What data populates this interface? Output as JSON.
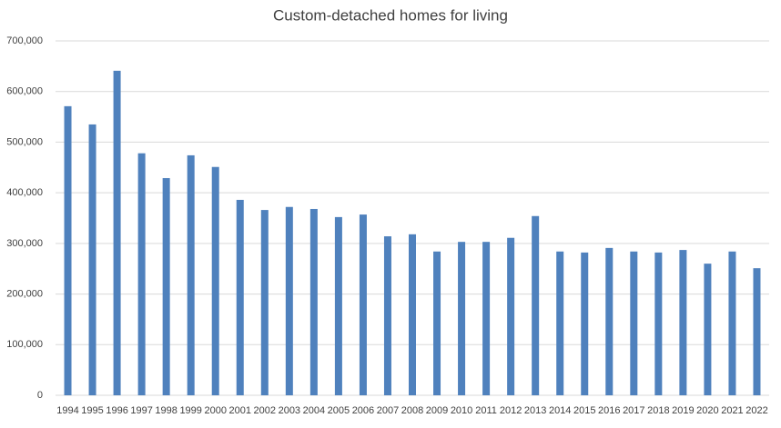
{
  "chart_data": {
    "type": "bar",
    "title": "Custom-detached homes for living",
    "categories": [
      "1994",
      "1995",
      "1996",
      "1997",
      "1998",
      "1999",
      "2000",
      "2001",
      "2002",
      "2003",
      "2004",
      "2005",
      "2006",
      "2007",
      "2008",
      "2009",
      "2010",
      "2011",
      "2012",
      "2013",
      "2014",
      "2015",
      "2016",
      "2017",
      "2018",
      "2019",
      "2020",
      "2021",
      "2022"
    ],
    "values": [
      571000,
      535000,
      641000,
      478000,
      429000,
      474000,
      451000,
      386000,
      366000,
      372000,
      368000,
      352000,
      357000,
      314000,
      318000,
      284000,
      303000,
      303000,
      311000,
      354000,
      284000,
      282000,
      291000,
      284000,
      282000,
      287000,
      260000,
      284000,
      251000
    ],
    "color": "#4f81bd",
    "ylim": [
      0,
      700000
    ],
    "yticks": [
      0,
      {
        "value": 100000,
        "label": "100,000"
      },
      {
        "value": 200000,
        "label": "200,000"
      },
      {
        "value": 300000,
        "label": "300,000"
      },
      {
        "value": 400000,
        "label": "400,000"
      },
      {
        "value": 500000,
        "label": "500,000"
      },
      {
        "value": 600000,
        "label": "600,000"
      },
      {
        "value": 700000,
        "label": "700,000"
      }
    ],
    "grid": true
  }
}
